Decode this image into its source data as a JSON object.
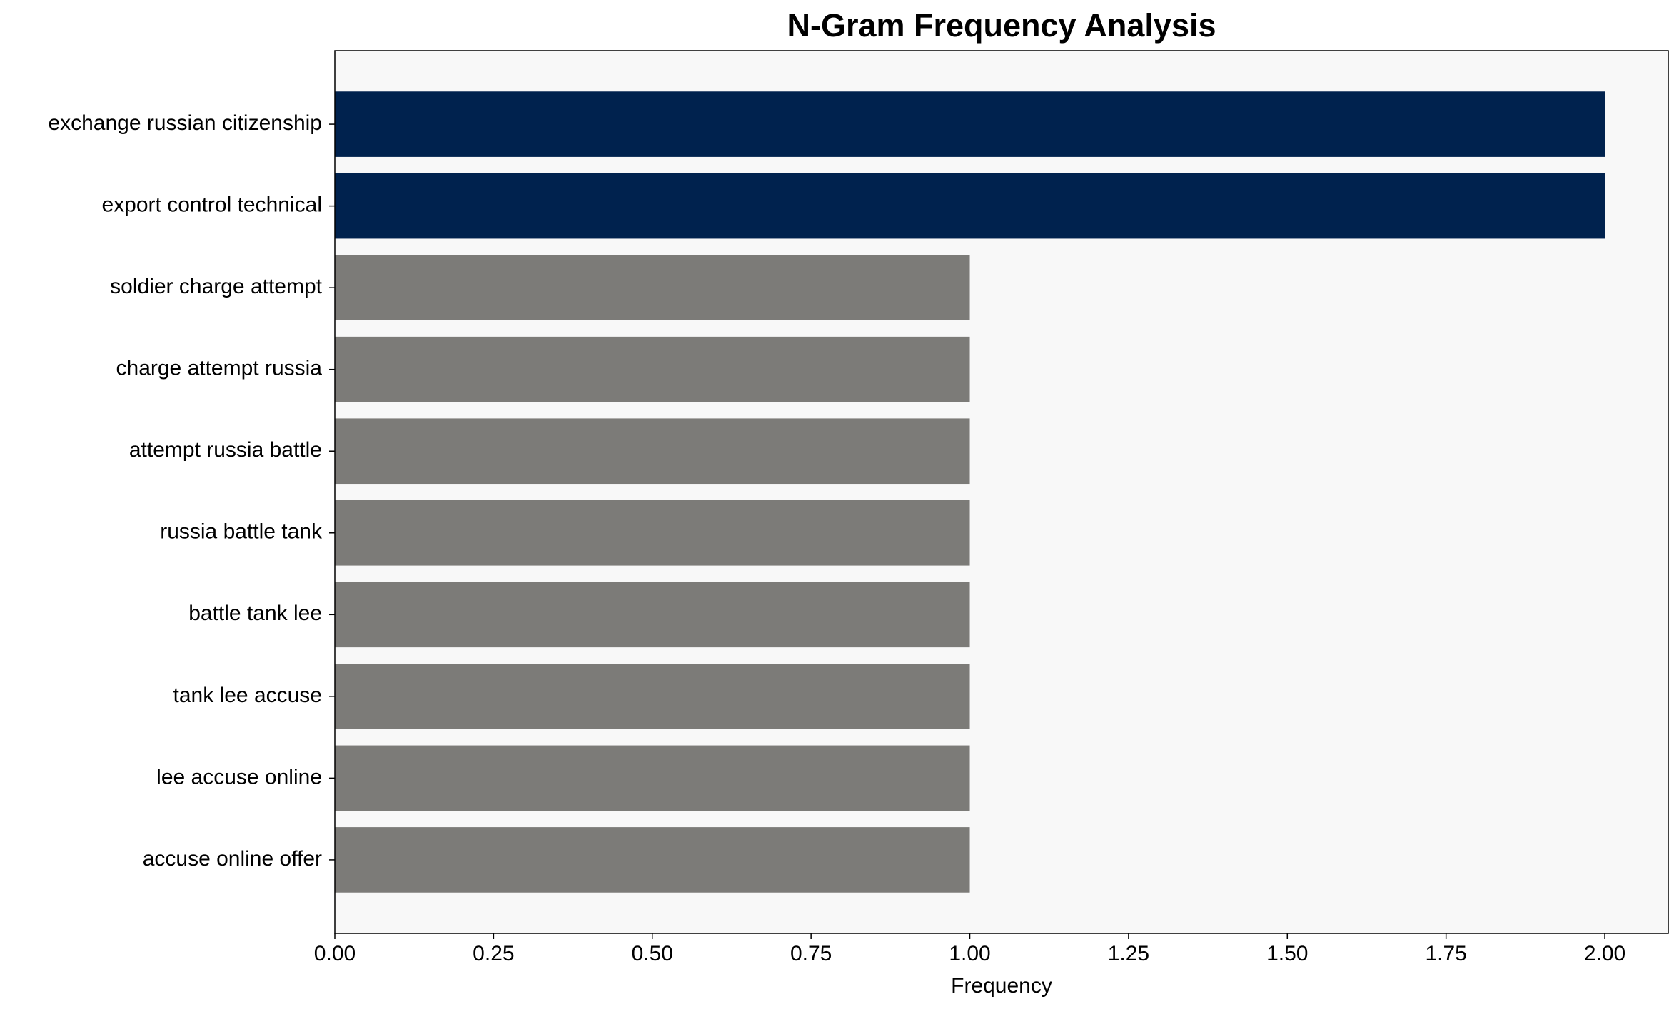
{
  "chart_data": {
    "type": "barh",
    "title": "N-Gram Frequency Analysis",
    "xlabel": "Frequency",
    "categories": [
      "exchange russian citizenship",
      "export control technical",
      "soldier charge attempt",
      "charge attempt russia",
      "attempt russia battle",
      "russia battle tank",
      "battle tank lee",
      "tank lee accuse",
      "lee accuse online",
      "accuse online offer"
    ],
    "values": [
      2,
      2,
      1,
      1,
      1,
      1,
      1,
      1,
      1,
      1
    ],
    "colors": [
      "#00224e",
      "#00224e",
      "#7c7b78",
      "#7c7b78",
      "#7c7b78",
      "#7c7b78",
      "#7c7b78",
      "#7c7b78",
      "#7c7b78",
      "#7c7b78"
    ],
    "xlim": [
      0,
      2.1
    ],
    "xticks": [
      {
        "value": 0,
        "label": "0.00"
      },
      {
        "value": 0.25,
        "label": "0.25"
      },
      {
        "value": 0.5,
        "label": "0.50"
      },
      {
        "value": 0.75,
        "label": "0.75"
      },
      {
        "value": 1,
        "label": "1.00"
      },
      {
        "value": 1.25,
        "label": "1.25"
      },
      {
        "value": 1.5,
        "label": "1.50"
      },
      {
        "value": 1.75,
        "label": "1.75"
      },
      {
        "value": 2,
        "label": "2.00"
      }
    ],
    "background": "#f8f8f8"
  }
}
